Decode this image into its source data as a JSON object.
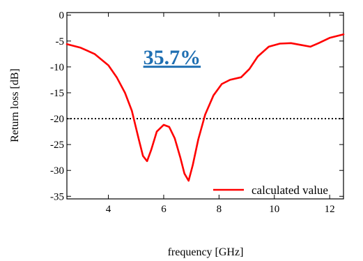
{
  "chart_data": {
    "type": "line",
    "xlabel": "frequency [GHz]",
    "ylabel": "Return loss [dB]",
    "xlim": [
      2.5,
      12.5
    ],
    "ylim": [
      -35.5,
      0.5
    ],
    "xticks": [
      4,
      6,
      8,
      10,
      12
    ],
    "yticks": [
      0,
      -5,
      -10,
      -15,
      -20,
      -25,
      -30,
      -35
    ],
    "xtick_labels": [
      "4",
      "6",
      "8",
      "10",
      "12"
    ],
    "ytick_labels": [
      "0",
      "-5",
      "-10",
      "-15",
      "-20",
      "-25",
      "-30",
      "-35"
    ],
    "grid": false,
    "legend_position": "bottom-right",
    "reference_line": {
      "y": -20,
      "style": "dotted",
      "color": "#000000"
    },
    "annotation": {
      "text": "35.7%",
      "x": 6.3,
      "y": -9.5,
      "color": "#1f6fb2"
    },
    "series": [
      {
        "name": "calculated value",
        "color": "#ff0000",
        "x": [
          2.5,
          3.0,
          3.5,
          4.0,
          4.3,
          4.6,
          4.85,
          5.1,
          5.25,
          5.4,
          5.55,
          5.75,
          6.0,
          6.2,
          6.4,
          6.6,
          6.75,
          6.9,
          7.05,
          7.25,
          7.5,
          7.8,
          8.1,
          8.4,
          8.8,
          9.1,
          9.4,
          9.8,
          10.2,
          10.6,
          11.0,
          11.3,
          11.6,
          12.0,
          12.5
        ],
        "y": [
          -5.6,
          -6.3,
          -7.5,
          -9.7,
          -12.0,
          -15.0,
          -18.5,
          -24.0,
          -27.2,
          -28.2,
          -26.0,
          -22.5,
          -21.2,
          -21.6,
          -23.8,
          -27.5,
          -30.6,
          -32.0,
          -29.0,
          -24.0,
          -19.2,
          -15.5,
          -13.3,
          -12.5,
          -12.0,
          -10.4,
          -8.0,
          -6.1,
          -5.5,
          -5.4,
          -5.8,
          -6.1,
          -5.4,
          -4.4,
          -3.7
        ]
      }
    ]
  }
}
